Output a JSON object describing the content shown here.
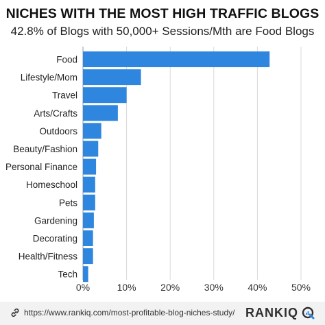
{
  "header": {
    "title": "NICHES WITH THE MOST HIGH TRAFFIC BLOGS",
    "subtitle": "42.8% of Blogs with 50,000+ Sessions/Mth are Food Blogs"
  },
  "chart_data": {
    "type": "bar",
    "orientation": "horizontal",
    "categories": [
      "Food",
      "Lifestyle/Mom",
      "Travel",
      "Arts/Crafts",
      "Outdoors",
      "Beauty/Fashion",
      "Personal Finance",
      "Homeschool",
      "Pets",
      "Gardening",
      "Decorating",
      "Health/Fitness",
      "Tech"
    ],
    "values": [
      42.8,
      13.3,
      10.0,
      8.0,
      4.2,
      3.5,
      3.0,
      2.8,
      2.8,
      2.5,
      2.3,
      2.3,
      1.2
    ],
    "xlim": [
      0,
      50
    ],
    "xticks": [
      0,
      10,
      20,
      30,
      40,
      50
    ],
    "xtick_labels": [
      "0%",
      "10%",
      "20%",
      "30%",
      "40%",
      "50%"
    ],
    "grid": true,
    "bar_color": "#2e86de"
  },
  "footer": {
    "url": "https://www.rankiq.com/most-profitable-blog-niches-study/",
    "brand": "RANKIQ",
    "link_icon": "link-icon",
    "brand_icon": "rankiq-logo-icon"
  }
}
